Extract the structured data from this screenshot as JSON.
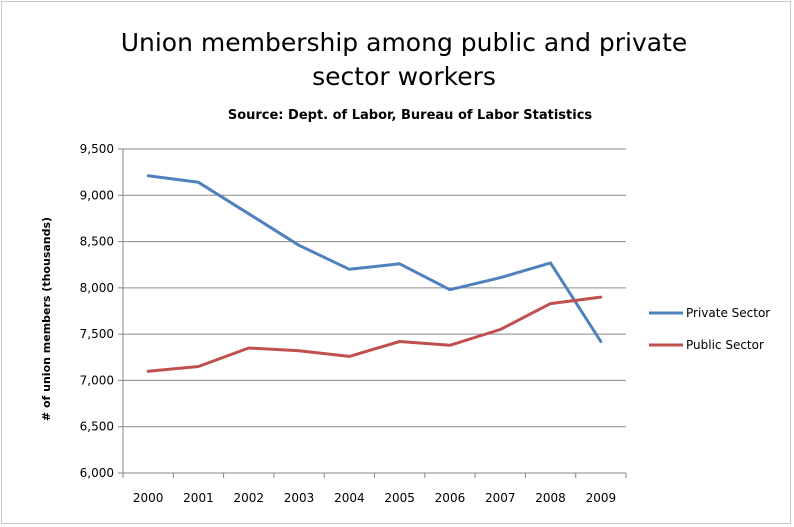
{
  "chart_data": {
    "type": "line",
    "title_line1": "Union membership among public and private",
    "title_line2": "sector workers",
    "subtitle": "Source: Dept. of Labor, Bureau of Labor Statistics",
    "xlabel": "",
    "ylabel": "# of union members (thousands)",
    "categories": [
      "2000",
      "2001",
      "2002",
      "2003",
      "2004",
      "2005",
      "2006",
      "2007",
      "2008",
      "2009"
    ],
    "ylim": [
      6000,
      9500
    ],
    "yticks": [
      9500,
      9000,
      8500,
      8000,
      7500,
      7000,
      6500,
      6000
    ],
    "ytick_labels": [
      "9,500",
      "9,000",
      "8,500",
      "8,000",
      "7,500",
      "7,000",
      "6,500",
      "6,000"
    ],
    "grid": true,
    "legend_position": "right",
    "series": [
      {
        "name": "Private Sector",
        "color": "#4F81BD",
        "values": [
          9210,
          9140,
          8800,
          8460,
          8200,
          8260,
          7980,
          8110,
          8270,
          7420
        ]
      },
      {
        "name": "Public Sector",
        "color": "#C0504D",
        "values": [
          7100,
          7150,
          7350,
          7320,
          7260,
          7420,
          7380,
          7550,
          7830,
          7900
        ]
      }
    ]
  }
}
